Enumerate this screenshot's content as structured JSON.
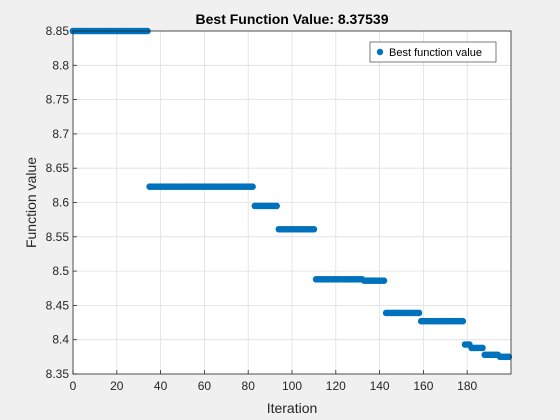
{
  "chart_data": {
    "type": "scatter",
    "title": "Best Function Value: 8.37539",
    "xlabel": "Iteration",
    "ylabel": "Function value",
    "xlim": [
      0,
      200
    ],
    "ylim": [
      8.35,
      8.85
    ],
    "xticks": [
      0,
      20,
      40,
      60,
      80,
      100,
      120,
      140,
      160,
      180
    ],
    "yticks": [
      8.35,
      8.4,
      8.45,
      8.5,
      8.55,
      8.6,
      8.65,
      8.7,
      8.75,
      8.8,
      8.85
    ],
    "xtick_labels": [
      "0",
      "20",
      "40",
      "60",
      "80",
      "100",
      "120",
      "140",
      "160",
      "180"
    ],
    "ytick_labels": [
      "8.35",
      "8.4",
      "8.45",
      "8.5",
      "8.55",
      "8.6",
      "8.65",
      "8.7",
      "8.75",
      "8.8",
      "8.85"
    ],
    "grid": true,
    "legend_position": "top-right",
    "marker_color": "#0072bd",
    "series": [
      {
        "name": "Best function value",
        "segments": [
          {
            "x_start": 0,
            "x_end": 35,
            "y": 8.85
          },
          {
            "x_start": 35,
            "x_end": 83,
            "y": 8.623
          },
          {
            "x_start": 83,
            "x_end": 94,
            "y": 8.595
          },
          {
            "x_start": 94,
            "x_end": 111,
            "y": 8.561
          },
          {
            "x_start": 111,
            "x_end": 133,
            "y": 8.488
          },
          {
            "x_start": 133,
            "x_end": 143,
            "y": 8.486
          },
          {
            "x_start": 143,
            "x_end": 159,
            "y": 8.439
          },
          {
            "x_start": 159,
            "x_end": 179,
            "y": 8.427
          },
          {
            "x_start": 179,
            "x_end": 182,
            "y": 8.393
          },
          {
            "x_start": 182,
            "x_end": 188,
            "y": 8.388
          },
          {
            "x_start": 188,
            "x_end": 195,
            "y": 8.378
          },
          {
            "x_start": 195,
            "x_end": 200,
            "y": 8.375
          }
        ]
      }
    ]
  }
}
